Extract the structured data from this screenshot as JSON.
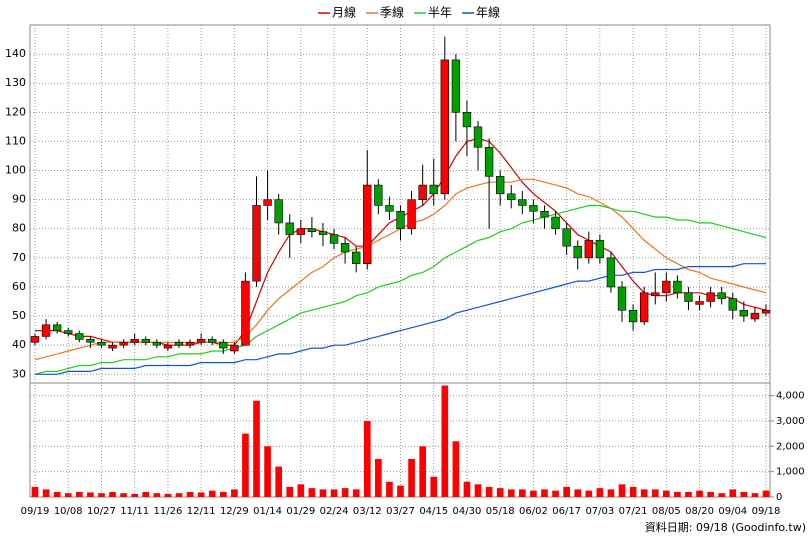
{
  "chart_data": {
    "type": "candlestick",
    "categories": [
      "09/19",
      null,
      null,
      "10/08",
      null,
      null,
      "10/27",
      null,
      null,
      "11/11",
      null,
      null,
      "11/26",
      null,
      null,
      "12/11",
      null,
      null,
      "12/29",
      null,
      null,
      "01/14",
      null,
      null,
      "01/29",
      null,
      null,
      "02/24",
      null,
      null,
      "03/12",
      null,
      null,
      "03/27",
      null,
      null,
      "04/15",
      null,
      null,
      "04/30",
      null,
      null,
      "05/18",
      null,
      null,
      "06/02",
      null,
      null,
      "06/17",
      null,
      null,
      "07/03",
      null,
      null,
      "07/21",
      null,
      null,
      "08/05",
      null,
      null,
      "08/20",
      null,
      null,
      "09/04",
      null,
      null,
      "09/18"
    ],
    "open": [
      41,
      43,
      47,
      45,
      44,
      42,
      41,
      39,
      40,
      41,
      42,
      41,
      39,
      41,
      40,
      41,
      42,
      41,
      38,
      40,
      62,
      88,
      90,
      82,
      78,
      80,
      79,
      78,
      75,
      72,
      68,
      95,
      88,
      86,
      80,
      90,
      95,
      92,
      138,
      120,
      115,
      108,
      98,
      92,
      90,
      88,
      86,
      84,
      80,
      74,
      70,
      76,
      70,
      60,
      52,
      48,
      57,
      58,
      62,
      58,
      54,
      55,
      58,
      56,
      52,
      49,
      51
    ],
    "high": [
      44,
      49,
      48,
      46,
      45,
      43,
      42,
      41,
      42,
      44,
      43,
      42,
      41,
      42,
      42,
      44,
      43,
      42,
      41,
      65,
      98,
      100,
      92,
      85,
      83,
      84,
      82,
      80,
      77,
      74,
      107,
      97,
      91,
      88,
      93,
      102,
      104,
      146,
      140,
      124,
      117,
      111,
      100,
      95,
      93,
      90,
      88,
      86,
      82,
      76,
      79,
      78,
      72,
      62,
      54,
      60,
      65,
      65,
      64,
      60,
      57,
      60,
      60,
      58,
      55,
      53,
      54
    ],
    "low": [
      40,
      42,
      44,
      43,
      41,
      39,
      39,
      38,
      39,
      40,
      40,
      39,
      38,
      39,
      39,
      40,
      40,
      37,
      37,
      40,
      60,
      83,
      78,
      70,
      75,
      77,
      74,
      73,
      68,
      65,
      66,
      85,
      83,
      76,
      78,
      88,
      88,
      90,
      110,
      105,
      100,
      80,
      88,
      87,
      85,
      82,
      80,
      78,
      71,
      66,
      68,
      68,
      58,
      48,
      45,
      47,
      54,
      55,
      56,
      52,
      52,
      53,
      54,
      49,
      48,
      48,
      50
    ],
    "close": [
      43,
      47,
      45,
      44,
      42,
      41,
      40,
      40,
      41,
      42,
      41,
      40,
      40,
      40,
      41,
      42,
      41,
      39,
      40,
      62,
      88,
      90,
      82,
      78,
      80,
      79,
      78,
      75,
      72,
      68,
      95,
      88,
      86,
      80,
      90,
      95,
      92,
      138,
      120,
      115,
      108,
      98,
      92,
      90,
      88,
      86,
      84,
      80,
      74,
      70,
      76,
      70,
      60,
      52,
      48,
      58,
      58,
      62,
      58,
      55,
      55,
      58,
      56,
      52,
      50,
      51,
      52
    ],
    "up_color": "#ff0000",
    "down_color": "#00a000",
    "ylim": [
      27,
      150
    ],
    "yticks": [
      30,
      40,
      50,
      60,
      70,
      80,
      90,
      100,
      110,
      120,
      130,
      140
    ],
    "y2lim": [
      0,
      4500
    ],
    "y2ticks": [
      0,
      {
        "value": 1000,
        "label": "1,000"
      },
      {
        "value": 2000,
        "label": "2,000"
      },
      {
        "value": 3000,
        "label": "3,000"
      },
      {
        "value": 4000,
        "label": "4,000"
      }
    ],
    "volume": {
      "color": "#ff0000",
      "axis": "y2",
      "values": [
        400,
        300,
        200,
        150,
        200,
        180,
        150,
        200,
        150,
        120,
        200,
        150,
        120,
        150,
        200,
        180,
        250,
        200,
        300,
        2500,
        3800,
        2000,
        1200,
        400,
        500,
        350,
        300,
        300,
        350,
        300,
        3000,
        1500,
        600,
        450,
        1500,
        2000,
        800,
        4400,
        2200,
        600,
        500,
        400,
        350,
        300,
        300,
        250,
        300,
        250,
        400,
        300,
        250,
        350,
        300,
        500,
        400,
        300,
        300,
        250,
        200,
        200,
        250,
        200,
        150,
        300,
        200,
        150,
        250
      ]
    },
    "series": [
      {
        "name": "月線",
        "color": "#dd0000",
        "values": [
          45,
          45,
          45,
          44,
          43,
          43,
          42,
          41,
          41,
          41,
          41,
          41,
          40,
          40,
          40,
          41,
          41,
          40,
          40,
          45,
          55,
          65,
          72,
          78,
          80,
          80,
          79,
          78,
          77,
          74,
          74,
          78,
          82,
          84,
          86,
          88,
          92,
          98,
          105,
          110,
          111,
          110,
          106,
          101,
          96,
          92,
          89,
          86,
          82,
          78,
          76,
          74,
          72,
          67,
          62,
          58,
          57,
          57,
          58,
          58,
          58,
          57,
          57,
          56,
          54,
          53,
          52
        ]
      },
      {
        "name": "季線",
        "color": "#ee7722",
        "values": [
          35,
          36,
          37,
          38,
          39,
          40,
          41,
          41,
          41,
          41,
          41,
          41,
          41,
          41,
          41,
          41,
          41,
          41,
          41,
          43,
          47,
          52,
          56,
          59,
          62,
          65,
          67,
          70,
          72,
          73,
          74,
          76,
          78,
          80,
          82,
          83,
          85,
          88,
          92,
          94,
          95,
          96,
          96,
          96,
          97,
          97,
          96,
          95,
          94,
          92,
          91,
          89,
          87,
          84,
          80,
          76,
          73,
          70,
          68,
          66,
          65,
          63,
          62,
          61,
          60,
          59,
          58
        ]
      },
      {
        "name": "半年",
        "color": "#22cc22",
        "values": [
          30,
          31,
          31,
          32,
          33,
          33,
          34,
          34,
          35,
          35,
          35,
          36,
          36,
          37,
          37,
          37,
          38,
          38,
          39,
          40,
          43,
          45,
          47,
          49,
          51,
          52,
          53,
          54,
          55,
          57,
          58,
          60,
          61,
          62,
          64,
          65,
          67,
          70,
          72,
          74,
          76,
          77,
          79,
          80,
          82,
          83,
          84,
          85,
          86,
          87,
          88,
          88,
          87,
          86,
          86,
          85,
          84,
          84,
          83,
          83,
          82,
          82,
          81,
          80,
          79,
          78,
          77
        ]
      },
      {
        "name": "年線",
        "color": "#1155cc",
        "values": [
          30,
          30,
          30,
          31,
          31,
          31,
          32,
          32,
          32,
          32,
          33,
          33,
          33,
          33,
          33,
          34,
          34,
          34,
          34,
          35,
          35,
          36,
          37,
          37,
          38,
          39,
          39,
          40,
          40,
          41,
          42,
          43,
          44,
          45,
          46,
          47,
          48,
          49,
          51,
          52,
          53,
          54,
          55,
          56,
          57,
          58,
          59,
          60,
          61,
          62,
          62,
          63,
          64,
          64,
          65,
          65,
          66,
          66,
          66,
          67,
          67,
          67,
          67,
          67,
          68,
          68,
          68
        ]
      }
    ],
    "grid": true,
    "legend": "top",
    "source": "資料日期: 09/18 (Goodinfo.tw)"
  }
}
